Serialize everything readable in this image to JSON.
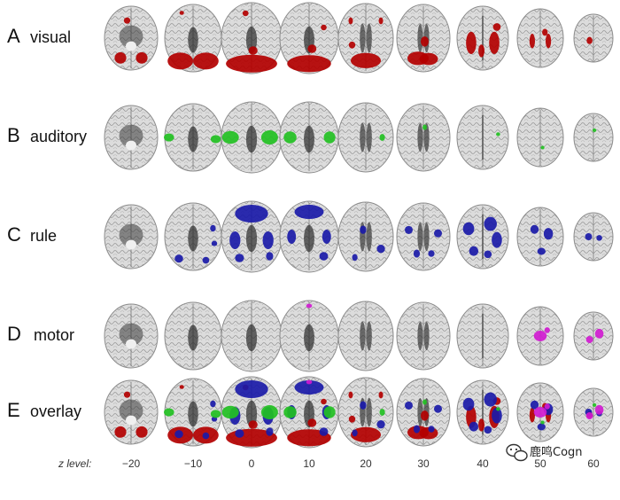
{
  "rows": [
    {
      "letter": "A",
      "name": "visual",
      "color": "#b30000"
    },
    {
      "letter": "B",
      "name": "auditory",
      "color": "#22c022"
    },
    {
      "letter": "C",
      "name": "rule",
      "color": "#1a1aa8"
    },
    {
      "letter": "D",
      "name": "motor",
      "color": "#d01ad0"
    },
    {
      "letter": "E",
      "name": "overlay",
      "color": ""
    }
  ],
  "z_axis": {
    "title": "z level:",
    "levels": [
      "−20",
      "−10",
      "0",
      "10",
      "20",
      "30",
      "40",
      "50",
      "60"
    ]
  },
  "watermark": {
    "text": "鹿鸣Cogn",
    "icon": "wechat-icon"
  },
  "colors": {
    "brain_fill": "#d9d9d9",
    "brain_outline": "#8c8c8c",
    "dark_structure": "#2a2a2a",
    "visual": "#b30000",
    "auditory": "#22c022",
    "rule": "#1a1aa8",
    "motor": "#d01ad0"
  }
}
